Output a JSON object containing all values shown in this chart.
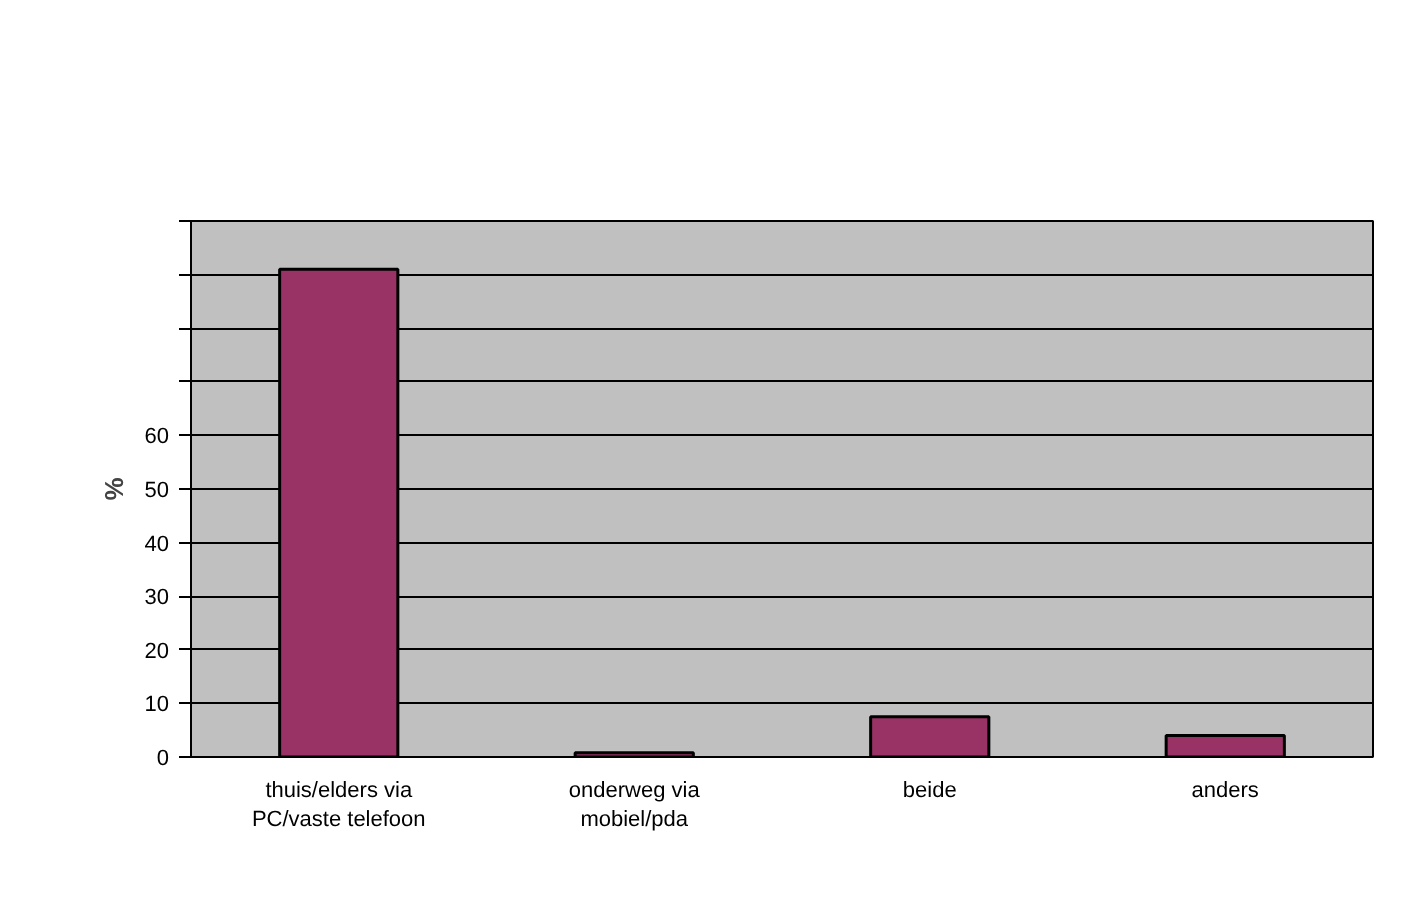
{
  "chart_data": {
    "type": "bar",
    "ylabel": "%",
    "categories": [
      "thuis/elders via\nPC/vaste telefoon",
      "onderweg via\nmobiel/pda",
      "beide",
      "anders"
    ],
    "values": [
      91,
      0.8,
      7.5,
      4
    ],
    "color": "#993366",
    "ylim": [
      0,
      100
    ],
    "yticks": [
      0,
      10,
      20,
      30,
      40,
      50,
      60,
      {
        "value": 70,
        "label": null
      },
      {
        "value": 80,
        "label": null
      },
      {
        "value": 90,
        "label": null
      },
      {
        "value": 100,
        "label": null
      }
    ],
    "grid": "y"
  }
}
